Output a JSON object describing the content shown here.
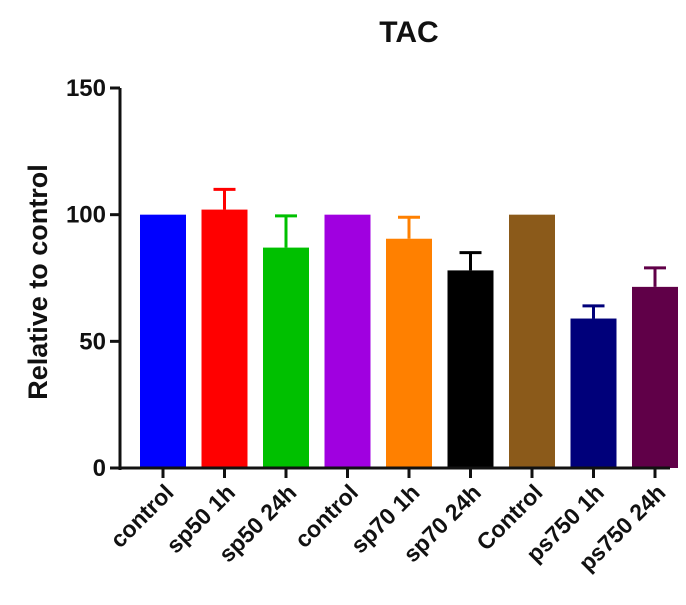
{
  "chart_data": {
    "type": "bar",
    "title": "TAC",
    "xlabel": "",
    "ylabel": "Relative to control",
    "ylim": [
      0,
      150
    ],
    "yticks": [
      0,
      50,
      100,
      150
    ],
    "grid": false,
    "categories": [
      "control",
      "sp50 1h",
      "sp50 24h",
      "control",
      "sp70 1h",
      "sp70 24h",
      "Control",
      "ps750 1h",
      "ps750 24h"
    ],
    "values": [
      100,
      102,
      87,
      100,
      90.5,
      78,
      100,
      59,
      71.5
    ],
    "errors": [
      0,
      8,
      12.5,
      0,
      8.5,
      7,
      0,
      5,
      7.5
    ],
    "colors": [
      "#0000ff",
      "#ff0000",
      "#00c000",
      "#a000e0",
      "#ff8000",
      "#000000",
      "#8b5a1a",
      "#00007a",
      "#600048"
    ]
  }
}
